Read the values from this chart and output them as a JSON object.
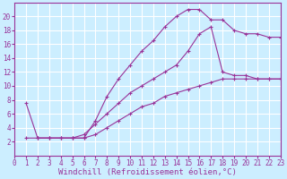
{
  "background_color": "#cceeff",
  "grid_color": "#ffffff",
  "line_color": "#993399",
  "marker": "+",
  "xlabel": "Windchill (Refroidissement éolien,°C)",
  "xlabel_fontsize": 6.5,
  "tick_fontsize": 5.5,
  "ylim": [
    0,
    22
  ],
  "xlim": [
    0,
    23
  ],
  "yticks": [
    2,
    4,
    6,
    8,
    10,
    12,
    14,
    16,
    18,
    20
  ],
  "xticks": [
    0,
    1,
    2,
    3,
    4,
    5,
    6,
    7,
    8,
    9,
    10,
    11,
    12,
    13,
    14,
    15,
    16,
    17,
    18,
    19,
    20,
    21,
    22,
    23
  ],
  "series": [
    {
      "x": [
        1,
        2,
        3,
        4,
        5,
        6,
        7,
        8,
        9,
        10,
        11,
        12,
        13,
        14,
        15,
        16,
        17,
        18,
        19,
        20,
        21,
        22,
        23
      ],
      "y": [
        7.5,
        2.5,
        2.5,
        2.5,
        2.5,
        2.5,
        5.0,
        8.5,
        11.0,
        13.0,
        15.0,
        16.5,
        18.5,
        20.0,
        21.0,
        21.0,
        19.5,
        19.5,
        18.0,
        17.5,
        17.5,
        17.0,
        17.0
      ]
    },
    {
      "x": [
        2,
        3,
        4,
        5,
        6,
        7,
        8,
        9,
        10,
        11,
        12,
        13,
        14,
        15,
        16,
        17,
        18,
        19,
        20,
        21,
        22,
        23
      ],
      "y": [
        2.5,
        2.5,
        2.5,
        2.5,
        3.0,
        4.5,
        6.0,
        7.5,
        9.0,
        10.0,
        11.0,
        12.0,
        13.0,
        15.0,
        17.5,
        18.5,
        12.0,
        11.5,
        11.5,
        11.0,
        11.0,
        11.0
      ]
    },
    {
      "x": [
        1,
        2,
        3,
        4,
        5,
        6,
        7,
        8,
        9,
        10,
        11,
        12,
        13,
        14,
        15,
        16,
        17,
        18,
        19,
        20,
        21,
        22,
        23
      ],
      "y": [
        2.5,
        2.5,
        2.5,
        2.5,
        2.5,
        2.5,
        3.0,
        4.0,
        5.0,
        6.0,
        7.0,
        7.5,
        8.5,
        9.0,
        9.5,
        10.0,
        10.5,
        11.0,
        11.0,
        11.0,
        11.0,
        11.0,
        11.0
      ]
    }
  ]
}
